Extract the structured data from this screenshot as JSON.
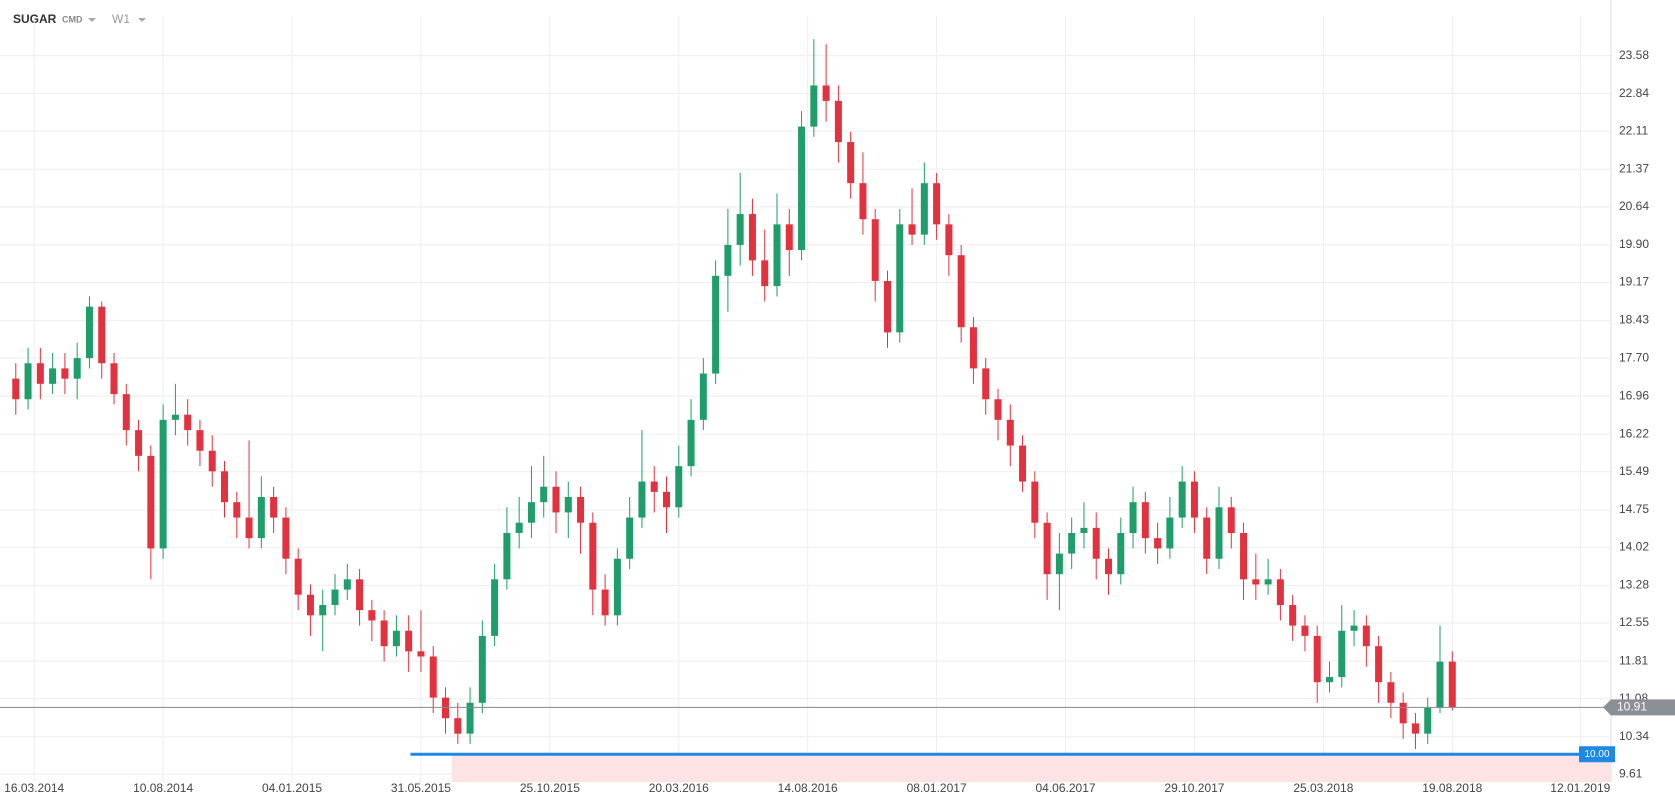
{
  "chart_data": {
    "type": "candlestick",
    "title": "SUGAR",
    "subtitle": "CMD",
    "interval": "W1",
    "x": [
      "2014-02-23",
      "2014-03-09",
      "2014-03-23",
      "2014-04-06",
      "2014-04-20",
      "2014-05-04",
      "2014-05-18",
      "2014-06-01",
      "2014-06-15",
      "2014-06-29",
      "2014-07-13",
      "2014-07-27",
      "2014-08-10",
      "2014-08-24",
      "2014-09-07",
      "2014-09-21",
      "2014-10-05",
      "2014-10-19",
      "2014-11-02",
      "2014-11-16",
      "2014-11-30",
      "2014-12-14",
      "2014-12-28",
      "2015-01-11",
      "2015-01-25",
      "2015-02-08",
      "2015-02-22",
      "2015-03-08",
      "2015-03-22",
      "2015-04-05",
      "2015-04-19",
      "2015-05-03",
      "2015-05-17",
      "2015-05-31",
      "2015-06-14",
      "2015-06-28",
      "2015-07-12",
      "2015-07-26",
      "2015-08-09",
      "2015-08-23",
      "2015-09-06",
      "2015-09-20",
      "2015-10-04",
      "2015-10-18",
      "2015-11-01",
      "2015-11-15",
      "2015-11-29",
      "2015-12-13",
      "2015-12-27",
      "2016-01-10",
      "2016-01-24",
      "2016-02-07",
      "2016-02-21",
      "2016-03-06",
      "2016-03-20",
      "2016-04-03",
      "2016-04-17",
      "2016-05-01",
      "2016-05-15",
      "2016-05-29",
      "2016-06-12",
      "2016-06-26",
      "2016-07-10",
      "2016-07-24",
      "2016-08-07",
      "2016-08-21",
      "2016-09-04",
      "2016-09-18",
      "2016-10-02",
      "2016-10-16",
      "2016-10-30",
      "2016-11-13",
      "2016-11-27",
      "2016-12-11",
      "2016-12-25",
      "2017-01-08",
      "2017-01-22",
      "2017-02-05",
      "2017-02-19",
      "2017-03-05",
      "2017-03-19",
      "2017-04-02",
      "2017-04-16",
      "2017-04-30",
      "2017-05-14",
      "2017-05-28",
      "2017-06-11",
      "2017-06-25",
      "2017-07-09",
      "2017-07-23",
      "2017-08-06",
      "2017-08-20",
      "2017-09-03",
      "2017-09-17",
      "2017-10-01",
      "2017-10-15",
      "2017-10-29",
      "2017-11-12",
      "2017-11-26",
      "2017-12-10",
      "2017-12-24",
      "2018-01-07",
      "2018-01-21",
      "2018-02-04",
      "2018-02-18",
      "2018-03-04",
      "2018-03-18",
      "2018-04-01",
      "2018-04-15",
      "2018-04-29",
      "2018-05-13",
      "2018-05-27",
      "2018-06-10",
      "2018-06-24",
      "2018-07-08",
      "2018-07-22",
      "2018-08-05",
      "2018-08-19"
    ],
    "open": [
      17.3,
      16.9,
      17.6,
      17.2,
      17.5,
      17.3,
      17.7,
      18.7,
      17.6,
      17.0,
      16.3,
      15.8,
      14.0,
      16.5,
      16.6,
      16.3,
      15.9,
      15.5,
      14.9,
      14.6,
      14.2,
      15.0,
      14.6,
      13.8,
      13.1,
      12.7,
      12.9,
      13.2,
      13.4,
      12.8,
      12.6,
      12.1,
      12.4,
      12.0,
      11.9,
      11.1,
      10.7,
      10.4,
      11.0,
      12.3,
      13.4,
      14.3,
      14.5,
      14.9,
      15.2,
      14.7,
      15.0,
      14.5,
      13.2,
      12.7,
      13.8,
      14.6,
      15.3,
      15.1,
      14.8,
      15.6,
      16.5,
      17.4,
      19.3,
      19.9,
      20.5,
      19.6,
      19.1,
      20.3,
      19.8,
      22.2,
      23.0,
      22.7,
      21.9,
      21.1,
      20.4,
      19.2,
      18.2,
      20.3,
      20.1,
      21.1,
      20.3,
      19.7,
      18.3,
      17.5,
      16.9,
      16.5,
      16.0,
      15.3,
      14.5,
      13.5,
      13.9,
      14.3,
      14.4,
      13.8,
      13.5,
      14.3,
      14.9,
      14.2,
      14.0,
      14.6,
      15.3,
      14.6,
      13.8,
      14.8,
      14.3,
      13.4,
      13.3,
      13.4,
      12.9,
      12.5,
      12.3,
      11.4,
      11.5,
      12.4,
      12.5,
      12.1,
      11.4,
      11.0,
      10.6,
      10.4,
      10.9,
      11.8
    ],
    "high": [
      17.6,
      17.9,
      17.9,
      17.8,
      17.8,
      18.0,
      18.9,
      18.8,
      17.8,
      17.2,
      16.5,
      16.0,
      16.8,
      17.2,
      16.9,
      16.5,
      16.2,
      15.7,
      15.1,
      16.1,
      15.4,
      15.2,
      14.8,
      14.0,
      13.3,
      13.2,
      13.5,
      13.7,
      13.6,
      13.0,
      12.8,
      12.7,
      12.7,
      12.8,
      12.1,
      11.3,
      11.0,
      11.3,
      12.6,
      13.7,
      14.8,
      15.0,
      15.6,
      15.8,
      15.5,
      15.3,
      15.2,
      14.7,
      13.5,
      14.0,
      15.0,
      16.3,
      15.6,
      15.4,
      16.0,
      16.9,
      17.7,
      19.6,
      20.6,
      21.3,
      20.8,
      20.2,
      20.9,
      20.6,
      22.5,
      23.9,
      23.8,
      23.0,
      22.1,
      21.7,
      20.6,
      19.4,
      20.6,
      21.0,
      21.5,
      21.3,
      20.5,
      19.9,
      18.5,
      17.7,
      17.1,
      16.8,
      16.2,
      15.5,
      14.7,
      14.3,
      14.6,
      14.9,
      14.7,
      14.0,
      14.6,
      15.2,
      15.1,
      14.5,
      15.0,
      15.6,
      15.5,
      14.8,
      15.2,
      15.0,
      14.5,
      13.9,
      13.8,
      13.6,
      13.1,
      12.7,
      12.5,
      11.8,
      12.9,
      12.8,
      12.7,
      12.3,
      11.6,
      11.2,
      10.8,
      11.1,
      12.5,
      12.0
    ],
    "low": [
      16.6,
      16.7,
      16.9,
      17.0,
      17.0,
      16.9,
      17.5,
      17.3,
      16.8,
      16.0,
      15.5,
      13.4,
      13.8,
      16.2,
      16.0,
      15.6,
      15.2,
      14.6,
      14.2,
      14.0,
      14.0,
      14.3,
      13.5,
      12.8,
      12.3,
      12.0,
      12.7,
      13.0,
      12.5,
      12.2,
      11.8,
      11.9,
      11.6,
      11.6,
      10.8,
      10.4,
      10.2,
      10.2,
      10.8,
      12.1,
      13.2,
      14.0,
      14.2,
      14.6,
      14.3,
      14.2,
      13.9,
      12.7,
      12.5,
      12.5,
      13.6,
      14.4,
      14.7,
      14.3,
      14.6,
      15.4,
      16.3,
      17.2,
      18.6,
      19.5,
      19.3,
      18.8,
      18.9,
      19.3,
      19.6,
      22.0,
      22.3,
      21.5,
      20.8,
      20.1,
      18.8,
      17.9,
      18.0,
      19.9,
      19.9,
      20.0,
      19.3,
      18.0,
      17.2,
      16.6,
      16.1,
      15.6,
      15.1,
      14.2,
      13.0,
      12.8,
      13.6,
      14.0,
      13.4,
      13.1,
      13.3,
      14.0,
      13.9,
      13.7,
      13.8,
      14.4,
      14.3,
      13.5,
      13.6,
      14.0,
      13.0,
      13.0,
      13.1,
      12.6,
      12.2,
      12.0,
      11.0,
      11.2,
      11.3,
      12.1,
      11.7,
      11.0,
      10.7,
      10.3,
      10.1,
      10.2,
      10.8,
      10.85
    ],
    "close": [
      16.9,
      17.6,
      17.2,
      17.5,
      17.3,
      17.7,
      18.7,
      17.6,
      17.0,
      16.3,
      15.8,
      14.0,
      16.5,
      16.6,
      16.3,
      15.9,
      15.5,
      14.9,
      14.6,
      14.2,
      15.0,
      14.6,
      13.8,
      13.1,
      12.7,
      12.9,
      13.2,
      13.4,
      12.8,
      12.6,
      12.1,
      12.4,
      12.0,
      11.9,
      11.1,
      10.7,
      10.4,
      11.0,
      12.3,
      13.4,
      14.3,
      14.5,
      14.9,
      15.2,
      14.7,
      15.0,
      14.5,
      13.2,
      12.7,
      13.8,
      14.6,
      15.3,
      15.1,
      14.8,
      15.6,
      16.5,
      17.4,
      19.3,
      19.9,
      20.5,
      19.6,
      19.1,
      20.3,
      19.8,
      22.2,
      23.0,
      22.7,
      21.9,
      21.1,
      20.4,
      19.2,
      18.2,
      20.3,
      20.1,
      21.1,
      20.3,
      19.7,
      18.3,
      17.5,
      16.9,
      16.5,
      16.0,
      15.3,
      14.5,
      13.5,
      13.9,
      14.3,
      14.4,
      13.8,
      13.5,
      14.3,
      14.9,
      14.2,
      14.0,
      14.6,
      15.3,
      14.6,
      13.8,
      14.8,
      14.3,
      13.4,
      13.3,
      13.4,
      12.9,
      12.5,
      12.3,
      11.4,
      11.5,
      12.4,
      12.5,
      12.1,
      11.4,
      11.0,
      10.6,
      10.4,
      10.9,
      11.8,
      10.91
    ],
    "up_color": "#1f9d6b",
    "down_color": "#e3323f",
    "xlim": [
      "2014-02-05",
      "2019-02-16"
    ],
    "xticks": [
      {
        "value": "2014-03-16",
        "label": "16.03.2014"
      },
      {
        "value": "2014-08-10",
        "label": "10.08.2014"
      },
      {
        "value": "2015-01-04",
        "label": "04.01.2015"
      },
      {
        "value": "2015-05-31",
        "label": "31.05.2015"
      },
      {
        "value": "2015-10-25",
        "label": "25.10.2015"
      },
      {
        "value": "2016-03-20",
        "label": "20.03.2016"
      },
      {
        "value": "2016-08-14",
        "label": "14.08.2016"
      },
      {
        "value": "2017-01-08",
        "label": "08.01.2017"
      },
      {
        "value": "2017-06-04",
        "label": "04.06.2017"
      },
      {
        "value": "2017-10-29",
        "label": "29.10.2017"
      },
      {
        "value": "2018-03-25",
        "label": "25.03.2018"
      },
      {
        "value": "2018-08-19",
        "label": "19.08.2018"
      },
      {
        "value": "2019-01-12",
        "label": "12.01.2019"
      }
    ],
    "ylim": [
      9.46,
      24.35
    ],
    "yticks": [
      9.61,
      10.34,
      11.08,
      11.81,
      12.55,
      13.28,
      14.02,
      14.75,
      15.49,
      16.22,
      16.96,
      {
        "value": 17.7,
        "label": "17.70"
      },
      18.43,
      19.17,
      {
        "value": 19.9,
        "label": "19.90"
      },
      20.64,
      21.37,
      22.11,
      22.84,
      23.58
    ],
    "grid": true,
    "last_price": 10.91,
    "alert": {
      "value": 10,
      "label": "10.00",
      "start": "2015-05-19",
      "zone_start": "2015-07-05",
      "color": "#1e88e5"
    }
  }
}
